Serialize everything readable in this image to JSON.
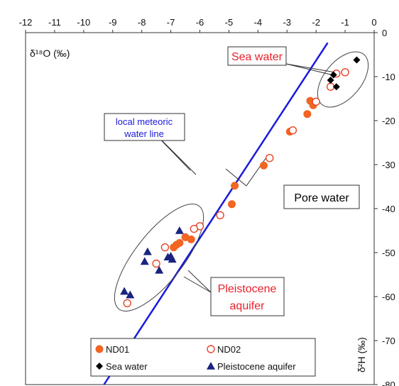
{
  "chart_data": {
    "type": "scatter",
    "x_axis": {
      "label": "δ¹⁸O (‰)",
      "range": [
        -12,
        0
      ],
      "ticks": [
        -12,
        -11,
        -10,
        -9,
        -8,
        -7,
        -6,
        -5,
        -4,
        -3,
        -2,
        -1,
        0
      ],
      "position": "top"
    },
    "y_axis": {
      "label": "δ²H (‰)",
      "range": [
        -80,
        0
      ],
      "ticks": [
        0,
        -10,
        -20,
        -30,
        -40,
        -50,
        -60,
        -70,
        -80
      ],
      "position": "right"
    },
    "grid": false,
    "legend_position": "bottom-center",
    "series": [
      {
        "name": "ND01",
        "marker": "filled-circle",
        "color": "#f26522",
        "points": [
          [
            -2.2,
            -15.5
          ],
          [
            -2.1,
            -16.5
          ],
          [
            -2.3,
            -18.5
          ],
          [
            -2.9,
            -22.5
          ],
          [
            -3.8,
            -30.2
          ],
          [
            -4.8,
            -34.8
          ],
          [
            -4.9,
            -39.0
          ],
          [
            -6.5,
            -46.5
          ],
          [
            -6.3,
            -47.0
          ],
          [
            -6.7,
            -47.8
          ],
          [
            -6.8,
            -48.2
          ],
          [
            -6.9,
            -48.8
          ]
        ]
      },
      {
        "name": "ND02",
        "marker": "open-circle",
        "color": "#e8442a",
        "points": [
          [
            -1.0,
            -9.0
          ],
          [
            -1.3,
            -9.3
          ],
          [
            -1.5,
            -12.3
          ],
          [
            -2.0,
            -15.7
          ],
          [
            -2.8,
            -22.2
          ],
          [
            -3.6,
            -28.5
          ],
          [
            -5.3,
            -41.5
          ],
          [
            -6.0,
            -44.0
          ],
          [
            -6.2,
            -44.6
          ],
          [
            -7.2,
            -48.8
          ],
          [
            -7.5,
            -52.5
          ],
          [
            -8.5,
            -61.5
          ]
        ]
      },
      {
        "name": "Sea water",
        "marker": "diamond",
        "color": "#000000",
        "points": [
          [
            -0.6,
            -6.2
          ],
          [
            -1.4,
            -9.6
          ],
          [
            -1.3,
            -12.3
          ],
          [
            -1.5,
            -10.8
          ]
        ]
      },
      {
        "name": "Pleistocene aquifer",
        "marker": "triangle",
        "color": "#1a237e",
        "points": [
          [
            -6.7,
            -45.0
          ],
          [
            -7.8,
            -49.8
          ],
          [
            -7.9,
            -52.0
          ],
          [
            -7.4,
            -54.0
          ],
          [
            -7.1,
            -51.0
          ],
          [
            -7.0,
            -50.8
          ],
          [
            -6.95,
            -51.5
          ],
          [
            -8.6,
            -58.8
          ],
          [
            -8.4,
            -59.6
          ]
        ]
      }
    ],
    "lines": [
      {
        "name": "local meteoric water line",
        "color": "#1a1adb",
        "points": [
          [
            -9.3,
            -80
          ],
          [
            -1.6,
            -2.3
          ]
        ]
      }
    ],
    "annotations": [
      {
        "text": "Sea water",
        "color": "#e8202a"
      },
      {
        "text": "Pore water",
        "color": "#000000"
      },
      {
        "text_lines": [
          "Pleistocene",
          "aquifer"
        ],
        "color": "#e8202a"
      },
      {
        "text_lines": [
          "local meteoric",
          "water line"
        ],
        "color": "#1a1adb"
      }
    ]
  }
}
